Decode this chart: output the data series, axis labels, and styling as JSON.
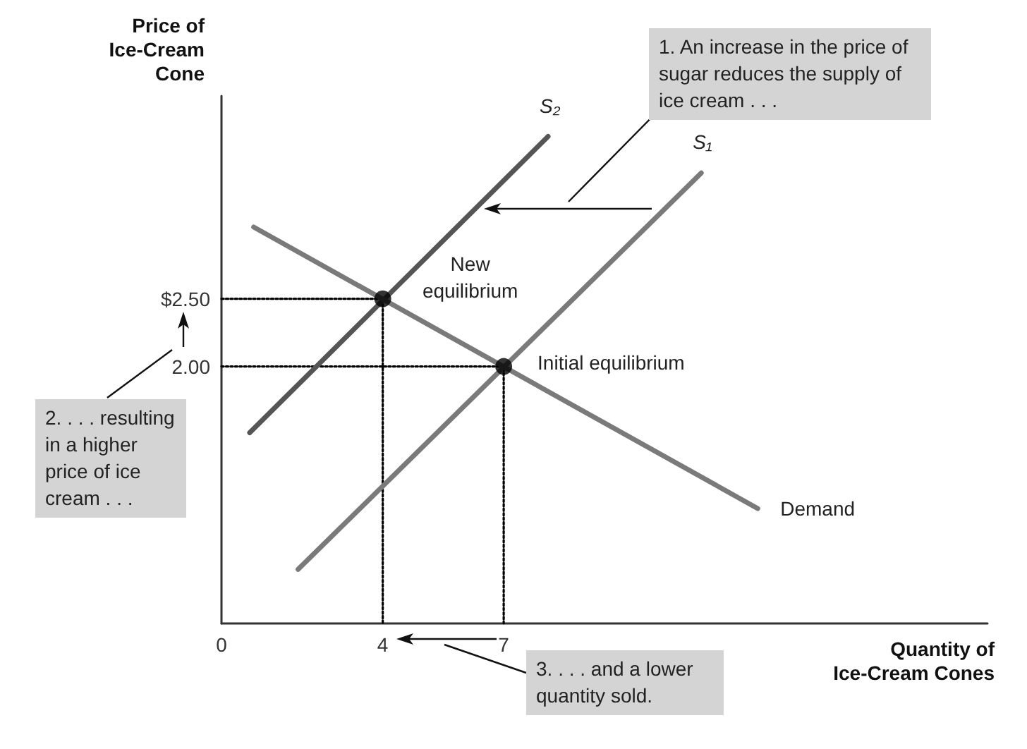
{
  "chart_data": {
    "type": "line",
    "xlabel": "Quantity of Ice-Cream Cones",
    "ylabel": "Price of Ice-Cream Cone",
    "xlim": [
      0,
      19
    ],
    "ylim": [
      0.1,
      4.0
    ],
    "xticks": [
      0,
      4,
      7
    ],
    "yticks": [
      {
        "value": 2,
        "label": "2.00"
      },
      {
        "value": 2.5,
        "label": "$2.50"
      }
    ],
    "grid": false,
    "legend": false,
    "marker": "none",
    "line_style": "solid",
    "series": [
      {
        "name": "S₂",
        "color": "#555555",
        "x": [
          0.7,
          8.1
        ],
        "values": [
          1.51,
          3.7
        ]
      },
      {
        "name": "S₁",
        "color": "#7a7a7a",
        "x": [
          1.9,
          11.9
        ],
        "values": [
          0.5,
          3.43
        ]
      },
      {
        "name": "Demand",
        "color": "#7a7a7a",
        "x": [
          0.8,
          13.3
        ],
        "values": [
          3.03,
          0.95
        ]
      },
      {
        "type": "line",
        "line_style": "dotted",
        "color": "#000000",
        "x": [
          0,
          4,
          4
        ],
        "values": [
          2.5,
          2.5,
          0.1
        ]
      },
      {
        "type": "line",
        "line_style": "dotted",
        "color": "#000000",
        "x": [
          0,
          7,
          7
        ],
        "values": [
          2,
          2,
          0.1
        ]
      },
      {
        "type": "scatter",
        "marker": "circle",
        "color": "#000000",
        "x": [
          4,
          7
        ],
        "values": [
          2.5,
          2
        ]
      }
    ],
    "annotations": [
      {
        "text": "New equilibrium",
        "x": 4,
        "y": 2.5
      },
      {
        "text": "Initial equilibrium",
        "x": 7,
        "y": 2
      },
      "1. An increase in the price of sugar reduces the supply of ice cream . . .",
      "2. . . . resulting in a higher price of ice cream . . .",
      "3. . . . and a lower quantity sold."
    ]
  }
}
